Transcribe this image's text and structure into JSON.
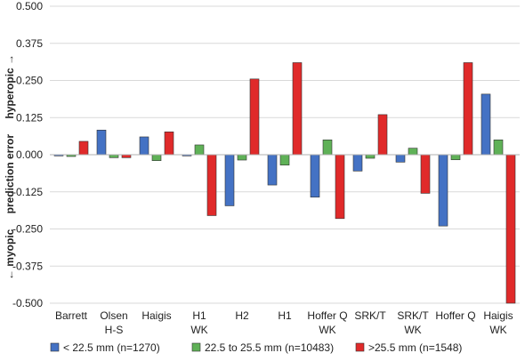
{
  "chart_data": {
    "type": "bar",
    "categories": [
      [
        "Barrett"
      ],
      [
        "Olsen",
        "H-S"
      ],
      [
        "Haigis"
      ],
      [
        "H1",
        "WK"
      ],
      [
        "H2"
      ],
      [
        "H1"
      ],
      [
        "Hoffer Q",
        "WK"
      ],
      [
        "SRK/T"
      ],
      [
        "SRK/T",
        "WK"
      ],
      [
        "Hoffer Q"
      ],
      [
        "Haigis",
        "WK"
      ]
    ],
    "series": [
      {
        "name": "< 22.5 mm (n=1270)",
        "color": "#4472c4",
        "values": [
          -0.004,
          0.083,
          0.06,
          -0.004,
          -0.172,
          -0.102,
          -0.143,
          -0.055,
          -0.025,
          -0.24,
          0.204
        ]
      },
      {
        "name": "22.5 to 25.5 mm (n=10483)",
        "color": "#5fb157",
        "values": [
          -0.006,
          -0.01,
          -0.02,
          0.033,
          -0.018,
          -0.035,
          0.05,
          -0.012,
          0.022,
          -0.017,
          0.05
        ]
      },
      {
        "name": ">25.5 mm (n=1548)",
        "color": "#e02a2a",
        "values": [
          0.045,
          -0.01,
          0.077,
          -0.205,
          0.255,
          0.31,
          -0.215,
          0.135,
          -0.13,
          0.31,
          -0.5
        ]
      }
    ],
    "ylim": [
      -0.5,
      0.5
    ],
    "yticks": [
      "0.500",
      "0.375",
      "0.250",
      "0.125",
      "0.000",
      "-0.125",
      "-0.250",
      "-0.375",
      "-0.500"
    ],
    "ytick_values": [
      0.5,
      0.375,
      0.25,
      0.125,
      0,
      -0.125,
      -0.25,
      -0.375,
      -0.5
    ],
    "ylabel_parts": {
      "down": "← myopic",
      "middle": "prediction error",
      "up": "hyperopic →"
    },
    "grid": true,
    "legend_position": "bottom"
  }
}
